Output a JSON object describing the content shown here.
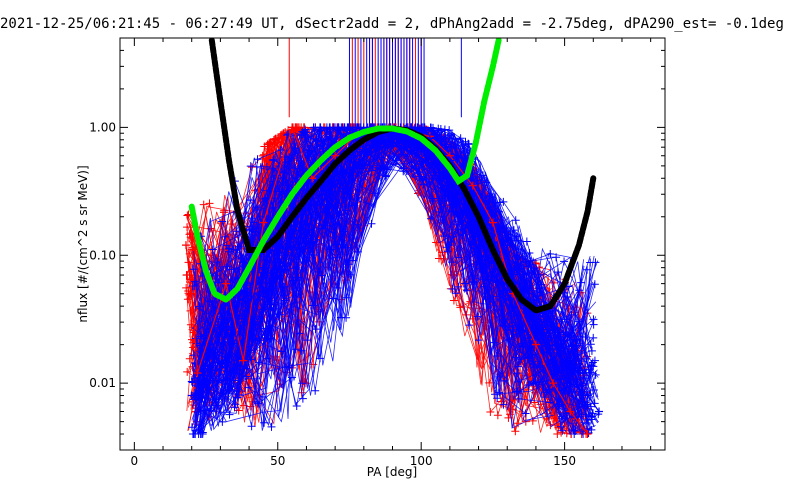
{
  "chart_data": {
    "type": "scatter",
    "title": "2021-12-25/06:21:45 - 06:27:49 UT, dSectr2add = 2, dPhAng2add = -2.75deg, dPA290_est=  -0.1deg",
    "xlabel": "PA [deg]",
    "ylabel": "nflux [#/(cm^2 s sr MeV)]",
    "xlim": [
      -5,
      185
    ],
    "ylim": [
      0.003,
      5
    ],
    "yscale": "log",
    "grid": false,
    "xticks": [
      0,
      50,
      100,
      150
    ],
    "xtick_labels": [
      "0",
      "50",
      "100",
      "150"
    ],
    "yticks": [
      0.01,
      0.1,
      1.0
    ],
    "ytick_labels": [
      "0.01",
      "0.10",
      "1.00"
    ],
    "colors": {
      "red": "#ff0000",
      "blue": "#0000ff",
      "green": "#00ee00",
      "black": "#000000"
    },
    "series": [
      {
        "color": "red",
        "style": "lines-plus",
        "x": [
          18,
          20,
          22,
          32,
          38,
          45,
          55,
          62,
          70,
          78,
          85,
          91,
          97,
          103,
          110,
          118,
          125,
          132,
          140,
          146,
          152,
          158
        ],
        "y": [
          0.12,
          0.05,
          0.012,
          0.06,
          0.015,
          0.18,
          1.0,
          0.4,
          0.6,
          0.9,
          0.95,
          1.0,
          0.92,
          0.85,
          0.6,
          0.35,
          0.18,
          0.05,
          0.02,
          0.01,
          0.006,
          0.004
        ],
        "envelope_upper": [
          0.2,
          0.22,
          0.25,
          0.3,
          0.4,
          0.7,
          1.0,
          1.0,
          1.0,
          1.0,
          1.0,
          1.0,
          1.0,
          0.95,
          0.8,
          0.5,
          0.25,
          0.12,
          0.1,
          0.08,
          0.07,
          0.06
        ],
        "envelope_lower": [
          0.004,
          0.004,
          0.005,
          0.006,
          0.005,
          0.004,
          0.006,
          0.01,
          0.03,
          0.1,
          0.5,
          0.6,
          0.4,
          0.15,
          0.05,
          0.015,
          0.005,
          0.004,
          0.004,
          0.004,
          0.004,
          0.004
        ]
      },
      {
        "color": "blue",
        "style": "lines-plus",
        "x": [
          20,
          25,
          32,
          38,
          45,
          55,
          62,
          70,
          78,
          85,
          91,
          97,
          103,
          110,
          118,
          125,
          132,
          140,
          146,
          152,
          158,
          162
        ],
        "y": [
          0.008,
          0.01,
          0.015,
          0.03,
          0.08,
          0.25,
          0.45,
          0.7,
          0.88,
          0.95,
          0.97,
          0.93,
          0.82,
          0.55,
          0.3,
          0.12,
          0.06,
          0.03,
          0.015,
          0.01,
          0.008,
          0.006
        ],
        "envelope_upper": [
          0.12,
          0.2,
          0.35,
          0.5,
          0.8,
          0.9,
          1.0,
          1.0,
          1.0,
          1.0,
          1.0,
          1.0,
          1.0,
          0.95,
          0.7,
          0.35,
          0.2,
          0.12,
          0.1,
          0.1,
          0.1,
          0.1
        ],
        "envelope_lower": [
          0.004,
          0.004,
          0.005,
          0.005,
          0.004,
          0.005,
          0.008,
          0.015,
          0.06,
          0.3,
          0.5,
          0.4,
          0.2,
          0.06,
          0.02,
          0.008,
          0.004,
          0.004,
          0.004,
          0.004,
          0.004,
          0.005
        ]
      },
      {
        "color": "black",
        "style": "thick-dashed",
        "x": [
          27,
          30,
          33,
          36,
          40,
          45,
          50,
          55,
          60,
          65,
          70,
          75,
          80,
          85,
          90,
          95,
          100,
          105,
          110,
          115,
          120,
          125,
          130,
          135,
          140,
          145,
          150,
          155,
          158,
          160
        ],
        "y": [
          4.8,
          1.6,
          0.55,
          0.22,
          0.11,
          0.11,
          0.14,
          0.2,
          0.28,
          0.38,
          0.52,
          0.66,
          0.8,
          0.92,
          0.98,
          0.95,
          0.85,
          0.68,
          0.5,
          0.33,
          0.2,
          0.11,
          0.065,
          0.045,
          0.037,
          0.04,
          0.06,
          0.12,
          0.22,
          0.4
        ]
      },
      {
        "color": "green",
        "style": "thick-dashed",
        "x": [
          20,
          22,
          25,
          28,
          32,
          36,
          40,
          45,
          50,
          55,
          60,
          65,
          70,
          75,
          80,
          85,
          90,
          95,
          100,
          105,
          110,
          113,
          116,
          119,
          122,
          125,
          127
        ],
        "y": [
          0.24,
          0.14,
          0.075,
          0.05,
          0.045,
          0.055,
          0.08,
          0.13,
          0.2,
          0.3,
          0.42,
          0.55,
          0.7,
          0.83,
          0.92,
          0.98,
          0.98,
          0.93,
          0.82,
          0.66,
          0.48,
          0.38,
          0.42,
          0.75,
          1.6,
          3.0,
          4.8
        ]
      }
    ],
    "vertical_markers": {
      "red": [
        54,
        76,
        78,
        80,
        82,
        83,
        84,
        86,
        87,
        88,
        89,
        90,
        91,
        92,
        93,
        94,
        95,
        96,
        98,
        100
      ],
      "blue": [
        75,
        77,
        79,
        81,
        82,
        83,
        85,
        86,
        87,
        88,
        89,
        90,
        91,
        92,
        93,
        94,
        95,
        96,
        97,
        99,
        100,
        101,
        114
      ],
      "top_value": 5,
      "bottom_value": [
        1.2,
        1.2,
        1.0,
        1.0,
        1.0,
        1.0,
        1.0,
        1.0,
        1.0,
        1.0,
        1.0,
        1.0,
        1.0,
        1.0,
        1.0,
        1.0,
        1.0,
        1.0,
        1.0,
        1.0,
        1.0,
        1.0,
        1.2
      ]
    }
  }
}
